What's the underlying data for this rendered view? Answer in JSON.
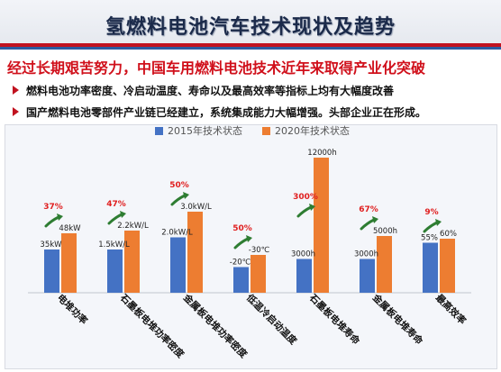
{
  "page": {
    "title": "氢燃料电池汽车技术现状及趋势",
    "subtitle": "经过长期艰苦努力，中国车用燃料电池技术近年来取得产业化突破",
    "bullets": [
      "燃料电池功率密度、冷启动温度、寿命以及最高效率等指标上均有大幅度改善",
      "国产燃料电池零部件产业链已经建立，系统集成能力大幅增强。头部企业正在形成。"
    ]
  },
  "colors": {
    "series_2015": "#4472c4",
    "series_2020": "#ed7d31",
    "improvement": "#e02020",
    "arrow": "#2e7d32",
    "title_red": "#d0101b"
  },
  "chart_data": {
    "type": "bar",
    "legend_position": "top",
    "grid": false,
    "categories": [
      "电堆功率",
      "石墨板电堆功率密度",
      "金属板电堆功率密度",
      "低温冷启动温度",
      "石墨板电堆寿命",
      "金属板电堆寿命",
      "最高效率"
    ],
    "series": [
      {
        "name": "2015年技术状态",
        "labels": [
          "35kW",
          "1.5kW/L",
          "2.0kW/L",
          "-20℃",
          "3000h",
          "3000h",
          "55%"
        ]
      },
      {
        "name": "2020年技术状态",
        "labels": [
          "48kW",
          "2.2kW/L",
          "3.0kW/L",
          "-30℃",
          "12000h",
          "5000h",
          "60%"
        ]
      }
    ],
    "bar_levels_2015": [
      0.32,
      0.32,
      0.41,
      0.19,
      0.25,
      0.25,
      0.37
    ],
    "bar_levels_2020": [
      0.44,
      0.46,
      0.6,
      0.28,
      1.0,
      0.42,
      0.4
    ],
    "improvement_labels": [
      "37%",
      "47%",
      "50%",
      "50%",
      "300%",
      "67%",
      "9%"
    ]
  }
}
